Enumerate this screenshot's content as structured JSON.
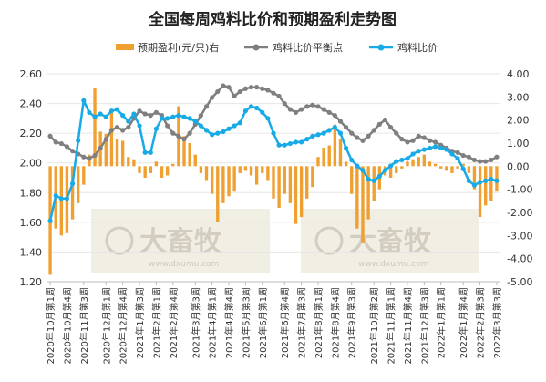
{
  "chart_data": {
    "type": "bar+line",
    "title": "全国每周鸡料比价和预期盈利走势图",
    "legend": {
      "placement": "top",
      "items": [
        "预期盈利(元/只)右",
        "鸡料比价平衡点",
        "鸡料比价"
      ]
    },
    "y_left": {
      "min": 1.2,
      "max": 2.6,
      "ticks": [
        "1.20",
        "1.40",
        "1.60",
        "1.80",
        "2.00",
        "2.20",
        "2.40",
        "2.60"
      ]
    },
    "y_right": {
      "min": -5,
      "max": 4,
      "ticks": [
        "-5.00",
        "-4.00",
        "-3.00",
        "-2.00",
        "-1.00",
        "0.00",
        "1.00",
        "2.00",
        "3.00",
        "4.00"
      ]
    },
    "x_tick_labels": [
      "2020年10月第1周",
      "2020年10月第4周",
      "2020年11月第3周",
      "2020年12月第1周",
      "2020年12月第4周",
      "2021年1月第3周",
      "2021年2月第1周",
      "2021年2月第4周",
      "2021年3月第3周",
      "2021年4月第1周",
      "2021年4月第4周",
      "2021年5月第3周",
      "2021年6月第1周",
      "2021年6月第4周",
      "2021年7月第3周",
      "2021年8月第1周",
      "2021年8月第4周",
      "2021年9月第3周",
      "2021年10月第2周",
      "2021年11月第1周",
      "2021年11月第4周",
      "2021年12月第3周",
      "2022年1月第1周",
      "2022年1月第4周",
      "2022年2月第3周",
      "2022年3月第3周"
    ],
    "series": [
      {
        "name": "预期盈利(元/只)右",
        "type": "bar",
        "axis": "right",
        "color": "#f0a030",
        "values": [
          -4.7,
          -2.7,
          -3.0,
          -2.9,
          -2.3,
          -1.6,
          -0.8,
          0.5,
          3.4,
          1.5,
          1.4,
          2.3,
          1.2,
          1.1,
          0.4,
          0.3,
          -0.3,
          -0.5,
          -0.3,
          0.2,
          -0.5,
          -0.4,
          0.1,
          2.6,
          1.3,
          1.0,
          0.5,
          -0.3,
          -0.6,
          -1.2,
          -2.4,
          -1.6,
          -1.3,
          -1.1,
          -0.3,
          -0.2,
          -0.4,
          -0.8,
          -0.3,
          -0.6,
          -1.4,
          -1.8,
          -1.2,
          -1.6,
          -2.5,
          -2.2,
          -1.4,
          -0.9,
          0.4,
          0.8,
          0.9,
          1.8,
          1.2,
          0.2,
          -1.2,
          -2.7,
          -3.3,
          -2.3,
          -1.5,
          -1.0,
          -0.4,
          -0.5,
          -0.3,
          -0.1,
          0.2,
          0.3,
          0.4,
          0.5,
          0.2,
          0.1,
          -0.1,
          -0.2,
          -0.3,
          -0.1,
          0.1,
          -0.3,
          -1.0,
          -2.2,
          -1.7,
          -1.5,
          -1.1
        ]
      },
      {
        "name": "鸡料比价平衡点",
        "type": "line",
        "axis": "left",
        "color": "#7f7f7f",
        "values": [
          2.18,
          2.14,
          2.13,
          2.11,
          2.08,
          2.06,
          2.04,
          2.03,
          2.05,
          2.1,
          2.16,
          2.22,
          2.24,
          2.22,
          2.24,
          2.3,
          2.35,
          2.33,
          2.32,
          2.34,
          2.32,
          2.25,
          2.2,
          2.18,
          2.16,
          2.2,
          2.26,
          2.32,
          2.38,
          2.44,
          2.48,
          2.52,
          2.51,
          2.45,
          2.48,
          2.5,
          2.51,
          2.51,
          2.5,
          2.49,
          2.47,
          2.45,
          2.4,
          2.36,
          2.34,
          2.36,
          2.38,
          2.39,
          2.38,
          2.36,
          2.34,
          2.32,
          2.28,
          2.24,
          2.2,
          2.17,
          2.15,
          2.18,
          2.22,
          2.26,
          2.29,
          2.24,
          2.2,
          2.16,
          2.14,
          2.15,
          2.18,
          2.17,
          2.15,
          2.14,
          2.12,
          2.1,
          2.08,
          2.07,
          2.05,
          2.04,
          2.02,
          2.01,
          2.01,
          2.02,
          2.04
        ]
      },
      {
        "name": "鸡料比价",
        "type": "line",
        "axis": "left",
        "color": "#18aae6",
        "values": [
          1.61,
          1.78,
          1.76,
          1.76,
          1.86,
          2.15,
          2.42,
          2.34,
          2.31,
          2.33,
          2.31,
          2.35,
          2.36,
          2.32,
          2.28,
          2.33,
          2.25,
          2.07,
          2.07,
          2.23,
          2.3,
          2.3,
          2.31,
          2.32,
          2.31,
          2.3,
          2.28,
          2.25,
          2.22,
          2.19,
          2.2,
          2.21,
          2.23,
          2.25,
          2.27,
          2.35,
          2.38,
          2.37,
          2.34,
          2.3,
          2.2,
          2.12,
          2.12,
          2.13,
          2.14,
          2.14,
          2.16,
          2.18,
          2.19,
          2.2,
          2.22,
          2.24,
          2.2,
          2.1,
          2.02,
          1.98,
          1.95,
          1.89,
          1.88,
          1.91,
          1.95,
          1.98,
          2.01,
          2.02,
          2.03,
          2.06,
          2.08,
          2.09,
          2.1,
          2.11,
          2.1,
          2.09,
          2.06,
          2.03,
          1.96,
          1.88,
          1.85,
          1.87,
          1.88,
          1.89,
          1.88
        ]
      }
    ]
  },
  "watermark": {
    "brand_text": "大畜牧",
    "url_text": "www.dxumu.com"
  }
}
